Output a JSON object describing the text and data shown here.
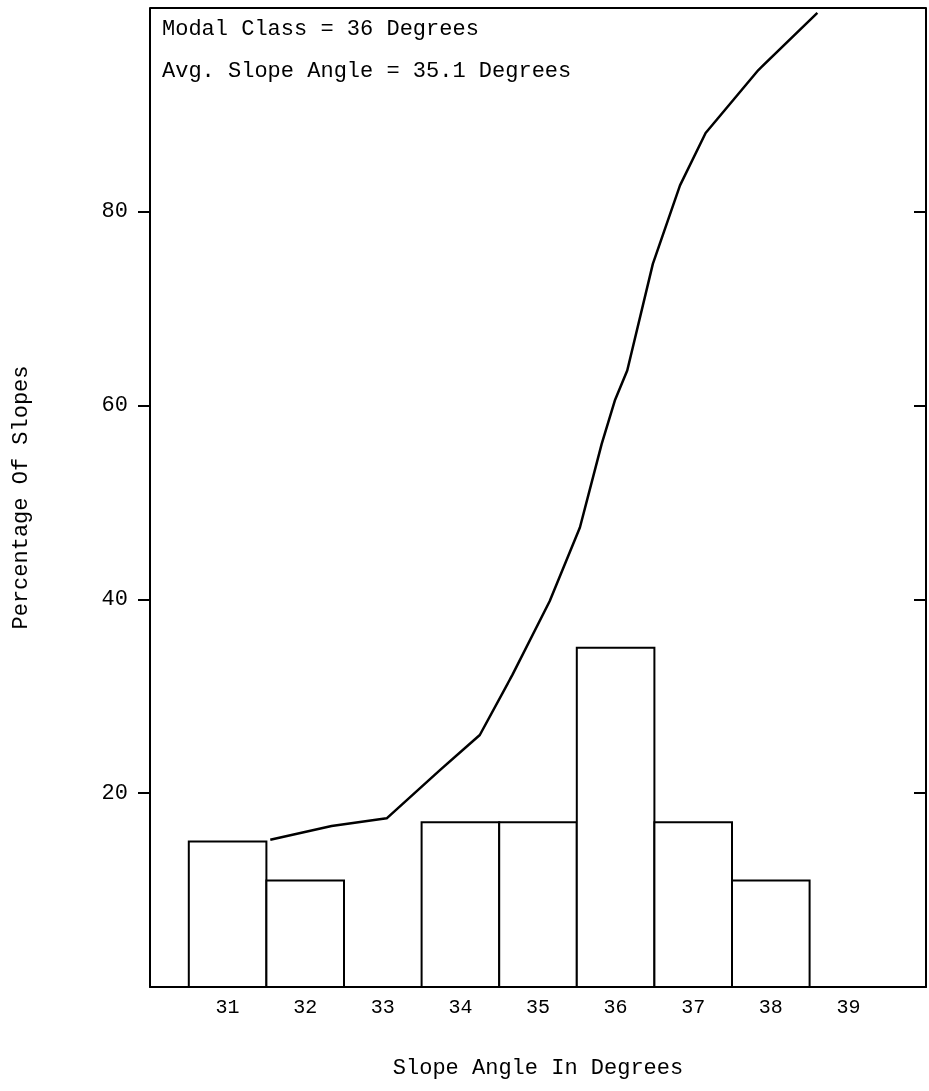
{
  "chart_data": {
    "type": "histogram",
    "xlabel": "Slope Angle In Degrees",
    "ylabel": "Percentage Of Slopes",
    "annotations": [
      "Modal Class = 36 Degrees",
      "Avg. Slope Angle = 35.1 Degrees"
    ],
    "xlim": [
      30,
      40
    ],
    "xticks": [
      31,
      32,
      33,
      34,
      35,
      36,
      37,
      38,
      39
    ],
    "ylim": [
      0,
      101
    ],
    "yticks": [
      20,
      40,
      60,
      80
    ],
    "grid": false,
    "series": [
      {
        "bins": [
          30.5,
          31.5,
          32.5,
          33.5,
          34.5,
          35.5,
          36.5,
          37.5,
          38.5
        ],
        "values": [
          15,
          11,
          0,
          17,
          17,
          35,
          17,
          11
        ],
        "color": "#ffffff"
      },
      {
        "type": "line",
        "x": [
          31.55,
          32.34,
          33.05,
          33.74,
          34.25,
          34.67,
          35.15,
          35.54,
          35.82,
          35.99,
          36.15,
          36.48,
          36.83,
          37.16,
          37.84,
          38.6
        ],
        "values": [
          15.2,
          16.6,
          17.4,
          22.4,
          26,
          32.2,
          39.8,
          47.4,
          56,
          60.5,
          63.6,
          74.6,
          82.7,
          88.1,
          94.6,
          100.5
        ],
        "color": "#000000",
        "marker": "none",
        "line_style": "solid"
      }
    ]
  }
}
